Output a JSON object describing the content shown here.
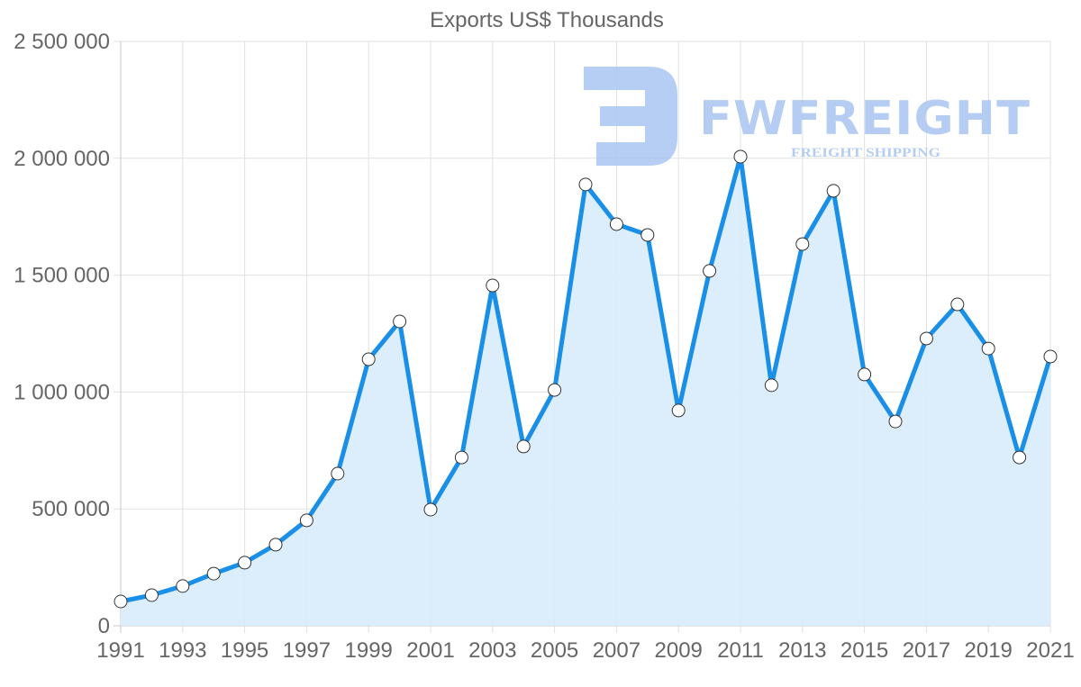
{
  "chart_data": {
    "type": "area",
    "title": "Exports US$ Thousands",
    "xlabel": "",
    "ylabel": "",
    "x": [
      1991,
      1992,
      1993,
      1994,
      1995,
      1996,
      1997,
      1998,
      1999,
      2000,
      2001,
      2002,
      2003,
      2004,
      2005,
      2006,
      2007,
      2008,
      2009,
      2010,
      2011,
      2012,
      2013,
      2014,
      2015,
      2016,
      2017,
      2018,
      2019,
      2020,
      2021
    ],
    "series": [
      {
        "name": "Exports US$ Thousands",
        "values": [
          104000,
          131000,
          170000,
          223000,
          270000,
          347000,
          451000,
          651000,
          1140000,
          1302000,
          497000,
          720000,
          1456000,
          767000,
          1009000,
          1888000,
          1718000,
          1672000,
          921000,
          1518000,
          2007000,
          1029000,
          1633000,
          1861000,
          1075000,
          874000,
          1229000,
          1375000,
          1186000,
          720000,
          1152000
        ]
      }
    ],
    "ylim": [
      0,
      2500000
    ],
    "yticks": [
      0,
      500000,
      1000000,
      1500000,
      2000000,
      2500000
    ],
    "ytick_labels": [
      "0",
      "500 000",
      "1 000 000",
      "1 500 000",
      "2 000 000",
      "2 500 000"
    ],
    "xtick_labels": [
      "1991",
      "1993",
      "1995",
      "1997",
      "1999",
      "2001",
      "2003",
      "2005",
      "2007",
      "2009",
      "2011",
      "2013",
      "2015",
      "2017",
      "2019",
      "2021"
    ],
    "grid": true,
    "legend": null,
    "colors": {
      "line": "#1a8fe8",
      "fill": "#d8ecfc",
      "point_fill": "#ffffff",
      "point_stroke": "#333333"
    }
  },
  "watermark": {
    "brand": "FWFREIGHT",
    "tagline": "FREIGHT SHIPPING",
    "color": "#aac5f2"
  }
}
